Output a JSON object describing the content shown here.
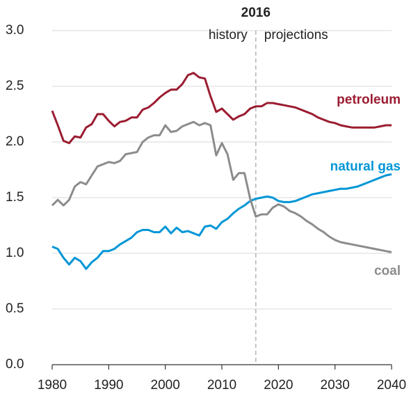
{
  "chart_data": {
    "type": "line",
    "x": [
      1980,
      1981,
      1982,
      1983,
      1984,
      1985,
      1986,
      1987,
      1988,
      1989,
      1990,
      1991,
      1992,
      1993,
      1994,
      1995,
      1996,
      1997,
      1998,
      1999,
      2000,
      2001,
      2002,
      2003,
      2004,
      2005,
      2006,
      2007,
      2008,
      2009,
      2010,
      2011,
      2012,
      2013,
      2014,
      2015,
      2016,
      2017,
      2018,
      2019,
      2020,
      2021,
      2022,
      2023,
      2024,
      2025,
      2026,
      2027,
      2028,
      2029,
      2030,
      2031,
      2032,
      2033,
      2034,
      2035,
      2036,
      2037,
      2038,
      2039,
      2040
    ],
    "series": [
      {
        "name": "petroleum",
        "color": "#9b1c31",
        "values": [
          2.28,
          2.15,
          2.01,
          1.99,
          2.05,
          2.04,
          2.13,
          2.16,
          2.25,
          2.25,
          2.19,
          2.14,
          2.18,
          2.19,
          2.22,
          2.22,
          2.29,
          2.31,
          2.35,
          2.4,
          2.44,
          2.47,
          2.47,
          2.52,
          2.6,
          2.62,
          2.58,
          2.57,
          2.41,
          2.27,
          2.3,
          2.25,
          2.2,
          2.23,
          2.25,
          2.3,
          2.32,
          2.32,
          2.35,
          2.35,
          2.34,
          2.33,
          2.32,
          2.31,
          2.29,
          2.27,
          2.25,
          2.22,
          2.2,
          2.18,
          2.17,
          2.15,
          2.14,
          2.13,
          2.13,
          2.13,
          2.13,
          2.13,
          2.14,
          2.15,
          2.15
        ]
      },
      {
        "name": "natural gas",
        "color": "#0096d6",
        "values": [
          1.06,
          1.04,
          0.96,
          0.9,
          0.96,
          0.93,
          0.86,
          0.92,
          0.96,
          1.02,
          1.02,
          1.04,
          1.08,
          1.11,
          1.14,
          1.19,
          1.21,
          1.21,
          1.19,
          1.19,
          1.24,
          1.18,
          1.23,
          1.19,
          1.2,
          1.18,
          1.16,
          1.24,
          1.25,
          1.22,
          1.28,
          1.31,
          1.36,
          1.4,
          1.43,
          1.47,
          1.49,
          1.5,
          1.51,
          1.5,
          1.47,
          1.46,
          1.46,
          1.47,
          1.49,
          1.51,
          1.53,
          1.54,
          1.55,
          1.56,
          1.57,
          1.58,
          1.58,
          1.59,
          1.6,
          1.62,
          1.64,
          1.66,
          1.68,
          1.7,
          1.71
        ]
      },
      {
        "name": "coal",
        "color": "#8c8c8c",
        "values": [
          1.43,
          1.48,
          1.43,
          1.48,
          1.6,
          1.64,
          1.62,
          1.7,
          1.78,
          1.8,
          1.82,
          1.81,
          1.83,
          1.89,
          1.9,
          1.91,
          2.0,
          2.04,
          2.06,
          2.06,
          2.15,
          2.09,
          2.1,
          2.14,
          2.16,
          2.18,
          2.15,
          2.17,
          2.15,
          1.88,
          1.99,
          1.89,
          1.66,
          1.72,
          1.72,
          1.49,
          1.33,
          1.35,
          1.35,
          1.41,
          1.44,
          1.42,
          1.38,
          1.36,
          1.33,
          1.29,
          1.26,
          1.22,
          1.19,
          1.15,
          1.12,
          1.1,
          1.09,
          1.08,
          1.07,
          1.06,
          1.05,
          1.04,
          1.03,
          1.02,
          1.01
        ]
      }
    ],
    "divider": {
      "x": 2016,
      "left": "history",
      "right": "projections"
    },
    "xlim": [
      1980,
      2040
    ],
    "xticks": [
      1980,
      1990,
      2000,
      2010,
      2020,
      2030,
      2040
    ],
    "ylim": [
      0,
      3
    ],
    "yticks": [
      {
        "value": 0,
        "label": "0.0"
      },
      {
        "value": 0.5,
        "label": "0.5"
      },
      {
        "value": 1,
        "label": "1.0"
      },
      {
        "value": 1.5,
        "label": "1.5"
      },
      {
        "value": 2,
        "label": "2.0"
      },
      {
        "value": 2.5,
        "label": "2.5"
      },
      {
        "value": 3,
        "label": "3.0"
      }
    ],
    "grid": true
  }
}
